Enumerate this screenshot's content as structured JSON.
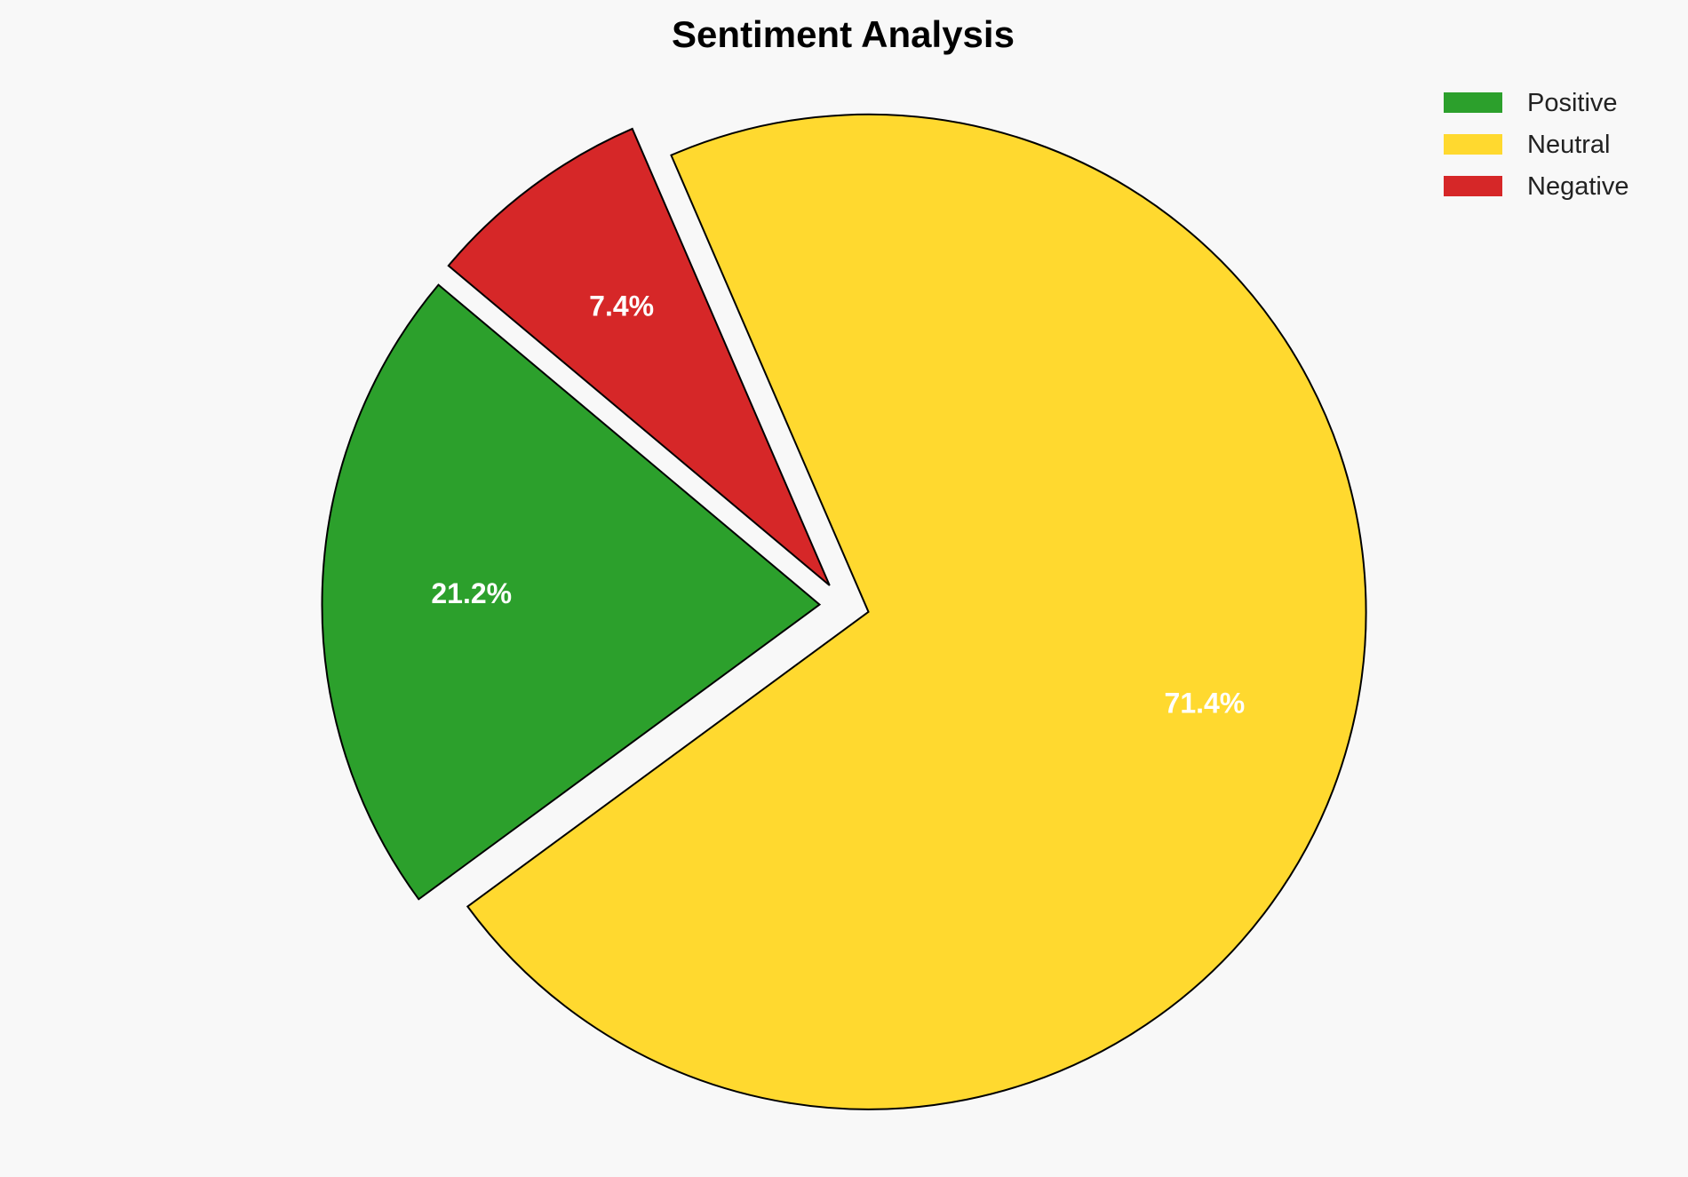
{
  "chart_data": {
    "type": "pie",
    "title": "Sentiment Analysis",
    "categories": [
      "Positive",
      "Neutral",
      "Negative"
    ],
    "values": [
      21.2,
      71.4,
      7.4
    ],
    "labels": [
      "21.2%",
      "71.4%",
      "7.4%"
    ],
    "colors": [
      "#2ca02c",
      "#ffd92f",
      "#d62728"
    ],
    "start_angle": 140,
    "explode": [
      0.05,
      0.05,
      0.05
    ],
    "legend_placement": "top-right",
    "edge_color": "#000000",
    "background": "#f8f8f8"
  }
}
